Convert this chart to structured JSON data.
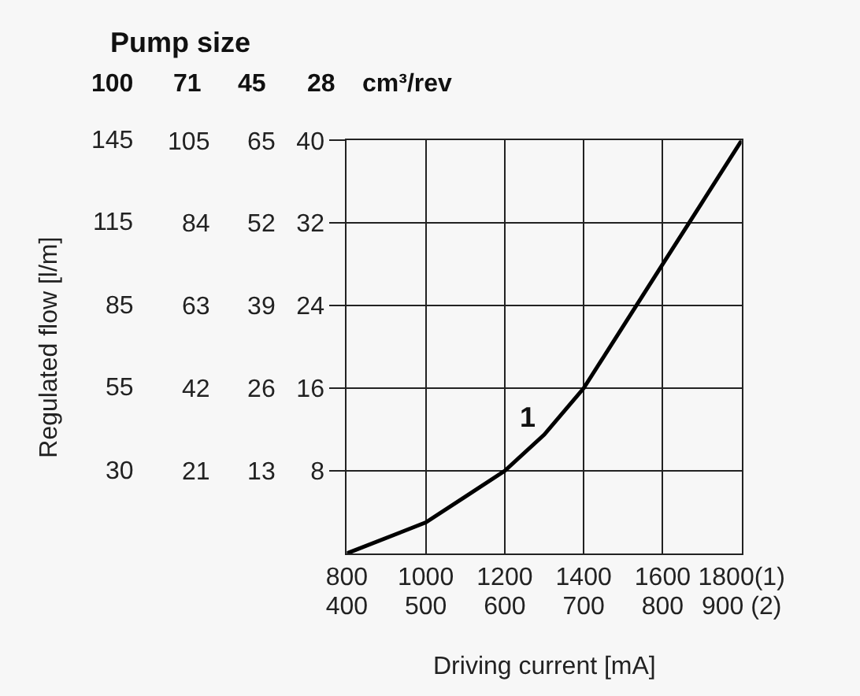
{
  "chart_data": {
    "type": "line",
    "title": "Pump size",
    "xlabel": "Driving current [mA]",
    "x": [
      800,
      1000,
      1100,
      1200,
      1300,
      1400,
      1500,
      1600,
      1700,
      1800
    ],
    "series": [
      {
        "color": "#000000",
        "values": [
          0,
          3,
          5.5,
          8,
          11.5,
          16,
          22,
          28,
          34,
          40
        ]
      }
    ],
    "xlim": [
      800,
      1800
    ],
    "xticks": [
      800,
      1000,
      1200,
      1400,
      1600,
      {
        "value": 1800,
        "label": "1800(1)"
      }
    ],
    "x2lim": [
      400,
      900
    ],
    "x2ticks": [
      400,
      500,
      600,
      700,
      800,
      {
        "value": 900,
        "label": "900 (2)"
      }
    ],
    "ylim": [
      0,
      40
    ],
    "yticks": [
      8,
      16,
      24,
      32,
      40
    ],
    "y2lim": [
      0,
      65
    ],
    "y2ticks": [
      13,
      26,
      39,
      52,
      65
    ],
    "y3lim": [
      0,
      105
    ],
    "y3ticks": [
      21,
      42,
      63,
      84,
      105
    ],
    "annotations": [
      "100",
      "71",
      "45",
      "28",
      "cm³/rev",
      "1",
      "Regulated flow [l/m]",
      "30",
      "55",
      "85",
      "115",
      "145"
    ],
    "grid": true,
    "marker": "none",
    "line_style": "solid"
  }
}
